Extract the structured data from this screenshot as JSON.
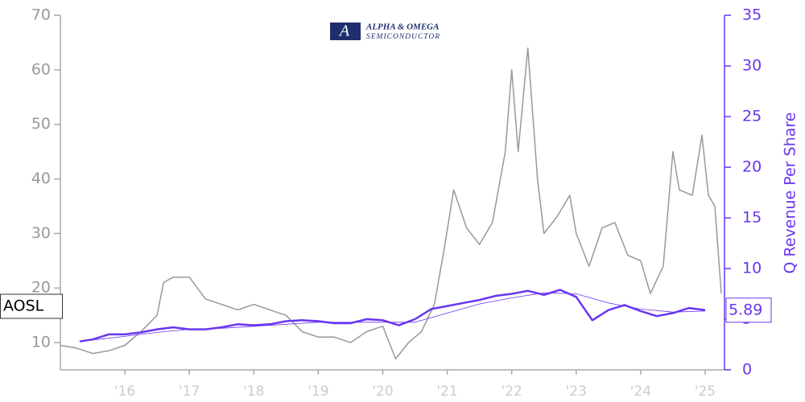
{
  "chart_data": {
    "type": "line",
    "logo": {
      "line1": "ALPHA & OMEGA",
      "line2": "SEMICONDUCTOR"
    },
    "y2_label": "Q Revenue Per Share",
    "xlim": [
      2015,
      2025.3
    ],
    "xticks": [
      {
        "value": 2016,
        "label": "'16"
      },
      {
        "value": 2017,
        "label": "'17"
      },
      {
        "value": 2018,
        "label": "'18"
      },
      {
        "value": 2019,
        "label": "'19"
      },
      {
        "value": 2020,
        "label": "'20"
      },
      {
        "value": 2021,
        "label": "'21"
      },
      {
        "value": 2022,
        "label": "'22"
      },
      {
        "value": 2023,
        "label": "'23"
      },
      {
        "value": 2024,
        "label": "'24"
      },
      {
        "value": 2025,
        "label": "'25"
      }
    ],
    "ylim": [
      5,
      70
    ],
    "yticks": [
      10,
      20,
      30,
      40,
      50,
      60,
      70
    ],
    "y2lim": [
      0,
      35
    ],
    "y2ticks": [
      0,
      5,
      10,
      15,
      20,
      25,
      30,
      35
    ],
    "series": [
      {
        "name": "AOSL",
        "color": "#999999",
        "width": 1.5,
        "x": [
          2015.0,
          2015.25,
          2015.5,
          2015.75,
          2016.0,
          2016.25,
          2016.5,
          2016.6,
          2016.75,
          2017.0,
          2017.25,
          2017.5,
          2017.75,
          2018.0,
          2018.25,
          2018.5,
          2018.75,
          2019.0,
          2019.25,
          2019.5,
          2019.75,
          2020.0,
          2020.2,
          2020.4,
          2020.6,
          2020.8,
          2020.95,
          2021.1,
          2021.3,
          2021.5,
          2021.7,
          2021.9,
          2022.0,
          2022.1,
          2022.25,
          2022.4,
          2022.5,
          2022.7,
          2022.9,
          2023.0,
          2023.2,
          2023.4,
          2023.6,
          2023.8,
          2024.0,
          2024.15,
          2024.35,
          2024.5,
          2024.6,
          2024.8,
          2024.95,
          2025.05,
          2025.15,
          2025.25
        ],
        "values": [
          9.5,
          9,
          8,
          8.5,
          9.5,
          12,
          15,
          21,
          22,
          22,
          18,
          17,
          16,
          17,
          16,
          15,
          12,
          11,
          11,
          10,
          12,
          13,
          7,
          10,
          12,
          17,
          27,
          38,
          31,
          28,
          32,
          45,
          60,
          45,
          64,
          40,
          30,
          33,
          37,
          30,
          24,
          31,
          32,
          26,
          25,
          19,
          24,
          45,
          38,
          37,
          48,
          37,
          35,
          19
        ]
      },
      {
        "color": "#6a35f0",
        "width": 2.5,
        "axis": "y2",
        "x": [
          2015.3,
          2015.5,
          2015.75,
          2016.0,
          2016.25,
          2016.5,
          2016.75,
          2017.0,
          2017.25,
          2017.5,
          2017.75,
          2018.0,
          2018.25,
          2018.5,
          2018.75,
          2019.0,
          2019.25,
          2019.5,
          2019.75,
          2020.0,
          2020.25,
          2020.5,
          2020.75,
          2021.0,
          2021.25,
          2021.5,
          2021.75,
          2022.0,
          2022.25,
          2022.5,
          2022.75,
          2023.0,
          2023.25,
          2023.5,
          2023.75,
          2024.0,
          2024.25,
          2024.5,
          2024.75,
          2025.0
        ],
        "values": [
          2.8,
          3.0,
          3.5,
          3.5,
          3.7,
          4.0,
          4.2,
          4.0,
          4.0,
          4.2,
          4.5,
          4.4,
          4.5,
          4.8,
          4.9,
          4.8,
          4.6,
          4.6,
          5.0,
          4.9,
          4.4,
          5.0,
          6.0,
          6.3,
          6.6,
          6.9,
          7.3,
          7.5,
          7.8,
          7.4,
          7.9,
          7.2,
          4.9,
          5.9,
          6.4,
          5.8,
          5.3,
          5.6,
          6.1,
          5.89
        ]
      },
      {
        "color": "#6a35f0",
        "width": 0.8,
        "axis": "y2",
        "x": [
          2015.3,
          2016.0,
          2016.5,
          2017.0,
          2017.5,
          2018.0,
          2018.5,
          2019.0,
          2019.5,
          2020.0,
          2020.5,
          2021.0,
          2021.5,
          2022.0,
          2022.5,
          2023.0,
          2023.5,
          2024.0,
          2024.5,
          2025.0
        ],
        "values": [
          2.8,
          3.3,
          3.7,
          4.0,
          4.1,
          4.3,
          4.5,
          4.7,
          4.7,
          4.7,
          4.7,
          5.6,
          6.5,
          7.1,
          7.6,
          7.5,
          6.6,
          6.0,
          5.7,
          5.8
        ]
      }
    ]
  }
}
